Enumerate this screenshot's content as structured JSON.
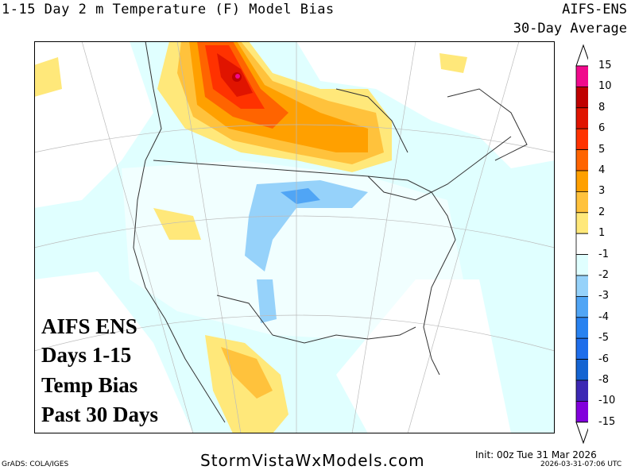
{
  "header": {
    "title": "1-15 Day 2 m Temperature (F) Model Bias",
    "model": "AIFS-ENS",
    "averaging": "30-Day Average"
  },
  "overlay_text": [
    "AIFS ENS",
    "Days 1-15",
    "Temp Bias",
    "Past 30 Days"
  ],
  "colorbar": {
    "labels": [
      "15",
      "10",
      "8",
      "6",
      "5",
      "4",
      "3",
      "2",
      "1",
      "-1",
      "-2",
      "-3",
      "-4",
      "-5",
      "-6",
      "-8",
      "-10",
      "-15"
    ],
    "colors": [
      "#f00a8c",
      "#c00000",
      "#e01400",
      "#ff3200",
      "#ff6400",
      "#ffa000",
      "#ffc23c",
      "#ffe87a",
      "#ffffff",
      "#e0ffff",
      "#96d2fa",
      "#50a5f5",
      "#2882f0",
      "#1e6eeb",
      "#1464d2",
      "#3c28b4",
      "#8200dc"
    ]
  },
  "footer": {
    "site": "StormVistaWxModels.com",
    "grads": "GrADS: COLA/IGES",
    "init": "Init: 00z Tue 31 Mar 2026",
    "timestamp": "2026-03-31-07:06 UTC"
  }
}
